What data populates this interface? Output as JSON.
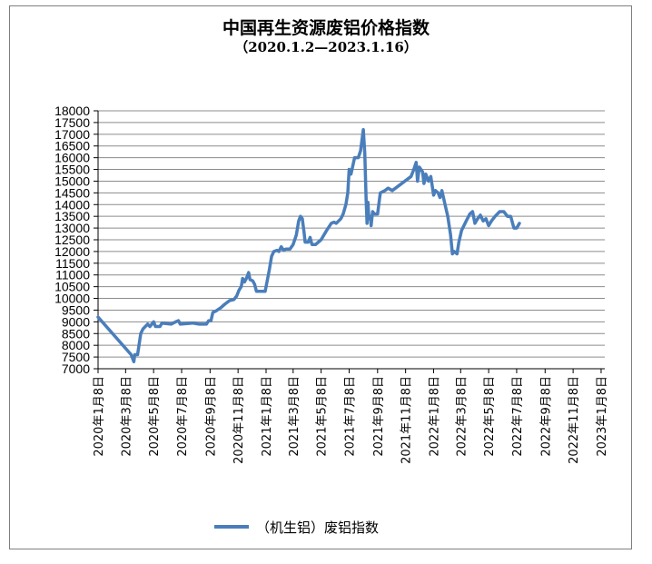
{
  "chart_data": {
    "type": "line",
    "title": "中国再生资源废铝价格指数",
    "subtitle": "（2020.1.2—2023.1.16）",
    "xlabel": "",
    "ylabel": "",
    "ylim": [
      7000,
      18000
    ],
    "yticks": [
      7000,
      7500,
      8000,
      8500,
      9000,
      9500,
      10000,
      10500,
      11000,
      11500,
      12000,
      12500,
      13000,
      13500,
      14000,
      14500,
      15000,
      15500,
      16000,
      16500,
      17000,
      17500,
      18000
    ],
    "xrange": [
      "2020-01-08",
      "2023-01-16"
    ],
    "xticks": [
      {
        "date": "2020-01-08",
        "label": "2020年1月8日"
      },
      {
        "date": "2020-03-08",
        "label": "2020年3月8日"
      },
      {
        "date": "2020-05-08",
        "label": "2020年5月8日"
      },
      {
        "date": "2020-07-08",
        "label": "2020年7月8日"
      },
      {
        "date": "2020-09-08",
        "label": "2020年9月8日"
      },
      {
        "date": "2020-11-08",
        "label": "2020年11月8日"
      },
      {
        "date": "2021-01-08",
        "label": "2021年1月8日"
      },
      {
        "date": "2021-03-08",
        "label": "2021年3月8日"
      },
      {
        "date": "2021-05-08",
        "label": "2021年5月8日"
      },
      {
        "date": "2021-07-08",
        "label": "2021年7月8日"
      },
      {
        "date": "2021-09-08",
        "label": "2021年9月8日"
      },
      {
        "date": "2021-11-08",
        "label": "2021年11月8日"
      },
      {
        "date": "2022-01-08",
        "label": "2022年1月8日"
      },
      {
        "date": "2022-03-08",
        "label": "2022年3月8日"
      },
      {
        "date": "2022-05-08",
        "label": "2022年5月8日"
      },
      {
        "date": "2022-07-08",
        "label": "2022年7月8日"
      },
      {
        "date": "2022-09-08",
        "label": "2022年9月8日"
      },
      {
        "date": "2022-11-08",
        "label": "2022年11月8日"
      },
      {
        "date": "2023-01-08",
        "label": "2023年1月8日"
      }
    ],
    "grid": true,
    "legend_position": "bottom",
    "series": [
      {
        "name": "（机生铝）废铝指数",
        "color": "#4a7ebb",
        "points": [
          [
            "2020-01-08",
            9200
          ],
          [
            "2020-03-20",
            7600
          ],
          [
            "2020-03-26",
            7300
          ],
          [
            "2020-03-28",
            7600
          ],
          [
            "2020-04-03",
            7600
          ],
          [
            "2020-04-10",
            8500
          ],
          [
            "2020-04-15",
            8700
          ],
          [
            "2020-04-25",
            8900
          ],
          [
            "2020-04-30",
            8800
          ],
          [
            "2020-05-08",
            9000
          ],
          [
            "2020-05-12",
            8800
          ],
          [
            "2020-05-22",
            8800
          ],
          [
            "2020-05-26",
            8950
          ],
          [
            "2020-06-15",
            8900
          ],
          [
            "2020-06-25",
            9000
          ],
          [
            "2020-07-01",
            9050
          ],
          [
            "2020-07-05",
            8900
          ],
          [
            "2020-08-01",
            8950
          ],
          [
            "2020-08-15",
            8900
          ],
          [
            "2020-08-31",
            8900
          ],
          [
            "2020-09-05",
            9050
          ],
          [
            "2020-09-10",
            9050
          ],
          [
            "2020-09-14",
            9400
          ],
          [
            "2020-09-20",
            9450
          ],
          [
            "2020-10-01",
            9600
          ],
          [
            "2020-10-10",
            9750
          ],
          [
            "2020-10-20",
            9900
          ],
          [
            "2020-10-30",
            9950
          ],
          [
            "2020-11-05",
            10100
          ],
          [
            "2020-11-10",
            10350
          ],
          [
            "2020-11-15",
            10500
          ],
          [
            "2020-11-18",
            10850
          ],
          [
            "2020-11-22",
            10700
          ],
          [
            "2020-11-26",
            10850
          ],
          [
            "2020-12-01",
            11100
          ],
          [
            "2020-12-04",
            10800
          ],
          [
            "2020-12-10",
            10750
          ],
          [
            "2020-12-14",
            10600
          ],
          [
            "2020-12-18",
            10300
          ],
          [
            "2021-01-02",
            10300
          ],
          [
            "2021-01-06",
            10300
          ],
          [
            "2021-01-15",
            11200
          ],
          [
            "2021-01-20",
            11800
          ],
          [
            "2021-01-25",
            12000
          ],
          [
            "2021-02-01",
            12050
          ],
          [
            "2021-02-05",
            12000
          ],
          [
            "2021-02-10",
            12200
          ],
          [
            "2021-02-15",
            12050
          ],
          [
            "2021-02-20",
            12100
          ],
          [
            "2021-03-01",
            12100
          ],
          [
            "2021-03-08",
            12300
          ],
          [
            "2021-03-15",
            12700
          ],
          [
            "2021-03-20",
            13300
          ],
          [
            "2021-03-24",
            13500
          ],
          [
            "2021-03-28",
            13400
          ],
          [
            "2021-04-01",
            12800
          ],
          [
            "2021-04-03",
            12400
          ],
          [
            "2021-04-10",
            12400
          ],
          [
            "2021-04-14",
            12600
          ],
          [
            "2021-04-18",
            12300
          ],
          [
            "2021-04-26",
            12300
          ],
          [
            "2021-05-08",
            12500
          ],
          [
            "2021-05-20",
            12900
          ],
          [
            "2021-05-30",
            13200
          ],
          [
            "2021-06-05",
            13250
          ],
          [
            "2021-06-10",
            13200
          ],
          [
            "2021-06-20",
            13400
          ],
          [
            "2021-06-25",
            13600
          ],
          [
            "2021-07-01",
            14000
          ],
          [
            "2021-07-05",
            14500
          ],
          [
            "2021-07-08",
            15500
          ],
          [
            "2021-07-12",
            15300
          ],
          [
            "2021-07-20",
            16000
          ],
          [
            "2021-07-28",
            16000
          ],
          [
            "2021-08-02",
            16300
          ],
          [
            "2021-08-08",
            17200
          ],
          [
            "2021-08-11",
            16200
          ],
          [
            "2021-08-14",
            14200
          ],
          [
            "2021-08-16",
            13200
          ],
          [
            "2021-08-18",
            14100
          ],
          [
            "2021-08-20",
            13400
          ],
          [
            "2021-08-23",
            13500
          ],
          [
            "2021-08-25",
            13100
          ],
          [
            "2021-08-28",
            13700
          ],
          [
            "2021-09-01",
            13600
          ],
          [
            "2021-09-08",
            13600
          ],
          [
            "2021-09-14",
            14500
          ],
          [
            "2021-09-24",
            14600
          ],
          [
            "2021-10-01",
            14700
          ],
          [
            "2021-10-10",
            14600
          ],
          [
            "2021-11-20",
            15200
          ],
          [
            "2021-11-26",
            15500
          ],
          [
            "2021-12-01",
            15800
          ],
          [
            "2021-12-04",
            15000
          ],
          [
            "2021-12-08",
            15600
          ],
          [
            "2021-12-15",
            15400
          ],
          [
            "2021-12-18",
            14900
          ],
          [
            "2021-12-22",
            15300
          ],
          [
            "2021-12-28",
            15000
          ],
          [
            "2022-01-02",
            15200
          ],
          [
            "2022-01-08",
            14400
          ],
          [
            "2022-01-12",
            14600
          ],
          [
            "2022-01-18",
            14500
          ],
          [
            "2022-01-22",
            14300
          ],
          [
            "2022-01-26",
            14600
          ],
          [
            "2022-02-02",
            14000
          ],
          [
            "2022-02-08",
            13500
          ],
          [
            "2022-02-14",
            12700
          ],
          [
            "2022-02-18",
            11900
          ],
          [
            "2022-02-22",
            12000
          ],
          [
            "2022-02-28",
            11900
          ],
          [
            "2022-03-04",
            12400
          ],
          [
            "2022-03-10",
            12900
          ],
          [
            "2022-03-20",
            13300
          ],
          [
            "2022-03-28",
            13600
          ],
          [
            "2022-04-03",
            13700
          ],
          [
            "2022-04-08",
            13200
          ],
          [
            "2022-04-14",
            13400
          ],
          [
            "2022-04-20",
            13550
          ],
          [
            "2022-04-26",
            13300
          ],
          [
            "2022-05-02",
            13400
          ],
          [
            "2022-05-08",
            13100
          ],
          [
            "2022-05-14",
            13300
          ],
          [
            "2022-05-22",
            13500
          ],
          [
            "2022-06-01",
            13700
          ],
          [
            "2022-06-10",
            13700
          ],
          [
            "2022-06-18",
            13500
          ],
          [
            "2022-06-25",
            13500
          ],
          [
            "2022-07-02",
            13000
          ],
          [
            "2022-07-08",
            13000
          ],
          [
            "2022-07-14",
            13200
          ]
        ]
      }
    ]
  }
}
